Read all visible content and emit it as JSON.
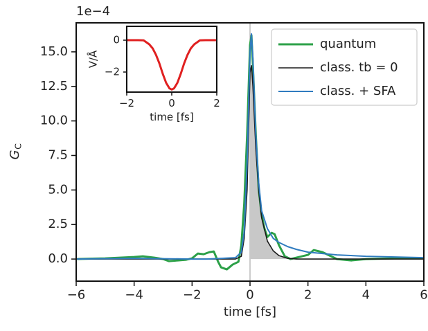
{
  "chart_data": [
    {
      "type": "line",
      "xlabel": "time [fs]",
      "ylabel": {
        "text": "G",
        "subscript": "C"
      },
      "y_offset_label": "1e−4",
      "xlim": [
        -6,
        6
      ],
      "ylim": [
        -1.6,
        17.1
      ],
      "xticks": [
        {
          "value": -6,
          "label": "−6"
        },
        {
          "value": -4,
          "label": "−4"
        },
        {
          "value": -2,
          "label": "−2"
        },
        0,
        2,
        4,
        6
      ],
      "yticks": [
        {
          "value": 0,
          "label": "0.0"
        },
        {
          "value": 2.5,
          "label": "2.5"
        },
        {
          "value": 5,
          "label": "5.0"
        },
        {
          "value": 7.5,
          "label": "7.5"
        },
        {
          "value": 10,
          "label": "10.0"
        },
        {
          "value": 12.5,
          "label": "12.5"
        },
        {
          "value": 15,
          "label": "15.0"
        }
      ],
      "vline": 0,
      "legend": "upper right",
      "series": [
        {
          "name": "quantum",
          "color": "#2ca048",
          "width": 3,
          "x": [
            -6,
            -5,
            -4.5,
            -4,
            -3.7,
            -3.3,
            -3,
            -2.8,
            -2.5,
            -2.2,
            -2,
            -1.8,
            -1.6,
            -1.4,
            -1.25,
            -1.1,
            -1,
            -0.8,
            -0.6,
            -0.4,
            -0.3,
            -0.2,
            -0.1,
            0,
            0.05,
            0.1,
            0.2,
            0.3,
            0.4,
            0.5,
            0.6,
            0.75,
            0.85,
            1,
            1.2,
            1.4,
            1.6,
            1.8,
            2,
            2.2,
            2.5,
            2.8,
            3,
            3.5,
            4,
            5,
            6
          ],
          "values": [
            0,
            0.05,
            0.1,
            0.15,
            0.2,
            0.1,
            0,
            -0.15,
            -0.1,
            -0.05,
            0.05,
            0.4,
            0.35,
            0.5,
            0.55,
            -0.2,
            -0.6,
            -0.75,
            -0.4,
            -0.2,
            1,
            4,
            9,
            15.5,
            16.2,
            14,
            9,
            5,
            3.2,
            2.2,
            1.6,
            1.9,
            1.8,
            1,
            0.2,
            0,
            0.1,
            0.2,
            0.3,
            0.65,
            0.5,
            0.2,
            0,
            -0.1,
            0,
            0.05,
            0.05
          ]
        },
        {
          "name": "class. tb = 0",
          "color": "#1a1a1a",
          "width": 1.6,
          "shaded": true,
          "x": [
            -6,
            -0.5,
            -0.3,
            -0.2,
            -0.1,
            0,
            0.05,
            0.1,
            0.2,
            0.3,
            0.4,
            0.6,
            0.8,
            1,
            1.3,
            1.6,
            6
          ],
          "values": [
            0,
            0,
            0.2,
            1.5,
            5,
            13.5,
            14,
            12.5,
            8,
            5,
            3,
            1.3,
            0.6,
            0.25,
            0.05,
            0,
            0
          ]
        },
        {
          "name": "class. + SFA",
          "color": "#2f7bbf",
          "width": 2,
          "x": [
            -6,
            -4,
            -2,
            -1.5,
            -1,
            -0.5,
            -0.3,
            -0.2,
            -0.1,
            0,
            0.05,
            0.1,
            0.2,
            0.3,
            0.4,
            0.6,
            0.8,
            1,
            1.3,
            1.6,
            2,
            2.5,
            3,
            4,
            5,
            6
          ],
          "values": [
            0,
            0.05,
            0,
            0,
            0.05,
            0.1,
            0.5,
            2,
            7,
            15,
            16.3,
            14.5,
            9,
            5.5,
            3.5,
            2.2,
            1.5,
            1.2,
            0.9,
            0.7,
            0.5,
            0.4,
            0.3,
            0.2,
            0.15,
            0.1
          ]
        }
      ]
    },
    {
      "type": "line",
      "xlabel": "time [fs]",
      "ylabel": "V/Å",
      "xlim": [
        -2,
        2
      ],
      "ylim": [
        -3.26,
        0.87
      ],
      "xticks": [
        {
          "value": -2,
          "label": "−2"
        },
        0,
        2
      ],
      "yticks": [
        0,
        {
          "value": -2,
          "label": "−2"
        }
      ],
      "series": [
        {
          "color": "#e02020",
          "width": 3,
          "x": [
            -2,
            -1.75,
            -1.5,
            -1.25,
            -1,
            -0.85,
            -0.7,
            -0.55,
            -0.4,
            -0.25,
            -0.1,
            0,
            0.1,
            0.25,
            0.4,
            0.55,
            0.7,
            0.85,
            1,
            1.25,
            1.5,
            1.75,
            2
          ],
          "values": [
            0,
            0,
            0,
            -0.01,
            -0.26,
            -0.51,
            -0.92,
            -1.46,
            -2.11,
            -2.68,
            -3.03,
            -3.1,
            -3.03,
            -2.68,
            -2.11,
            -1.46,
            -0.92,
            -0.51,
            -0.26,
            -0.01,
            0,
            0,
            0
          ]
        }
      ]
    }
  ]
}
